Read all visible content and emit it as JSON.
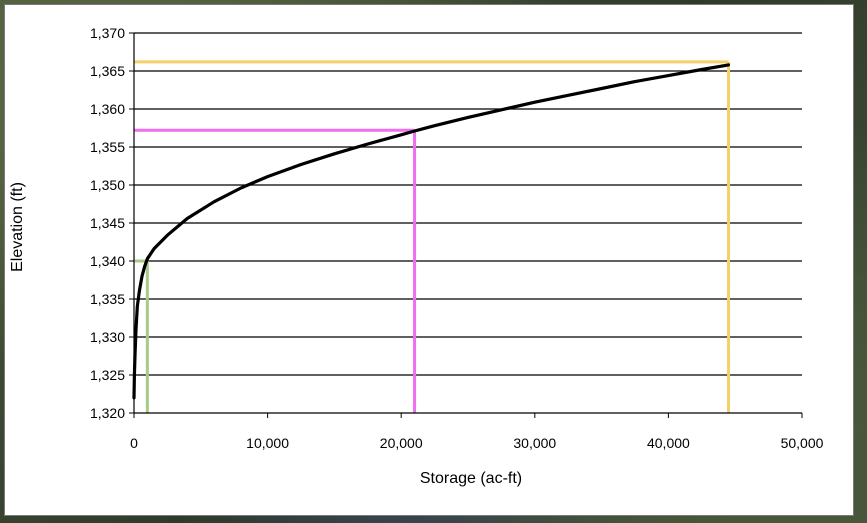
{
  "chart_data": {
    "type": "line",
    "xlabel": "Storage (ac-ft)",
    "ylabel": "Elevation (ft)",
    "xlim": [
      0,
      50000
    ],
    "ylim": [
      1320,
      1370
    ],
    "x_ticks": [
      0,
      10000,
      20000,
      30000,
      40000,
      50000
    ],
    "x_tick_labels": [
      "0",
      "10,000",
      "20,000",
      "30,000",
      "40,000",
      "50,000"
    ],
    "y_ticks": [
      1320,
      1325,
      1330,
      1335,
      1340,
      1345,
      1350,
      1355,
      1360,
      1365,
      1370
    ],
    "y_tick_labels": [
      "1,320",
      "1,325",
      "1,330",
      "1,335",
      "1,340",
      "1,345",
      "1,350",
      "1,355",
      "1,360",
      "1,365",
      "1,370"
    ],
    "grid": "horizontal",
    "legend": "none",
    "series": [
      {
        "color": "#000000",
        "x": [
          0,
          30,
          80,
          150,
          250,
          400,
          600,
          800,
          1000,
          1500,
          2500,
          4000,
          6000,
          8000,
          10000,
          12500,
          15000,
          17500,
          20000,
          21000,
          22500,
          25000,
          27500,
          30000,
          32500,
          35000,
          37500,
          40000,
          42500,
          44500
        ],
        "y": [
          1322,
          1325,
          1328,
          1331,
          1334,
          1336,
          1338,
          1339.3,
          1340.3,
          1341.6,
          1343.4,
          1345.6,
          1347.8,
          1349.6,
          1351.1,
          1352.7,
          1354.1,
          1355.4,
          1356.6,
          1357.1,
          1357.8,
          1358.9,
          1359.9,
          1360.9,
          1361.8,
          1362.7,
          1363.6,
          1364.4,
          1365.2,
          1365.8
        ]
      }
    ],
    "markers": [
      {
        "color": "#a9c98a",
        "x": 1000,
        "y": 1340
      },
      {
        "color": "#f06ef0",
        "x": 21000,
        "y": 1357.2
      },
      {
        "color": "#f5cf6a",
        "x": 44500,
        "y": 1366.2
      }
    ]
  }
}
